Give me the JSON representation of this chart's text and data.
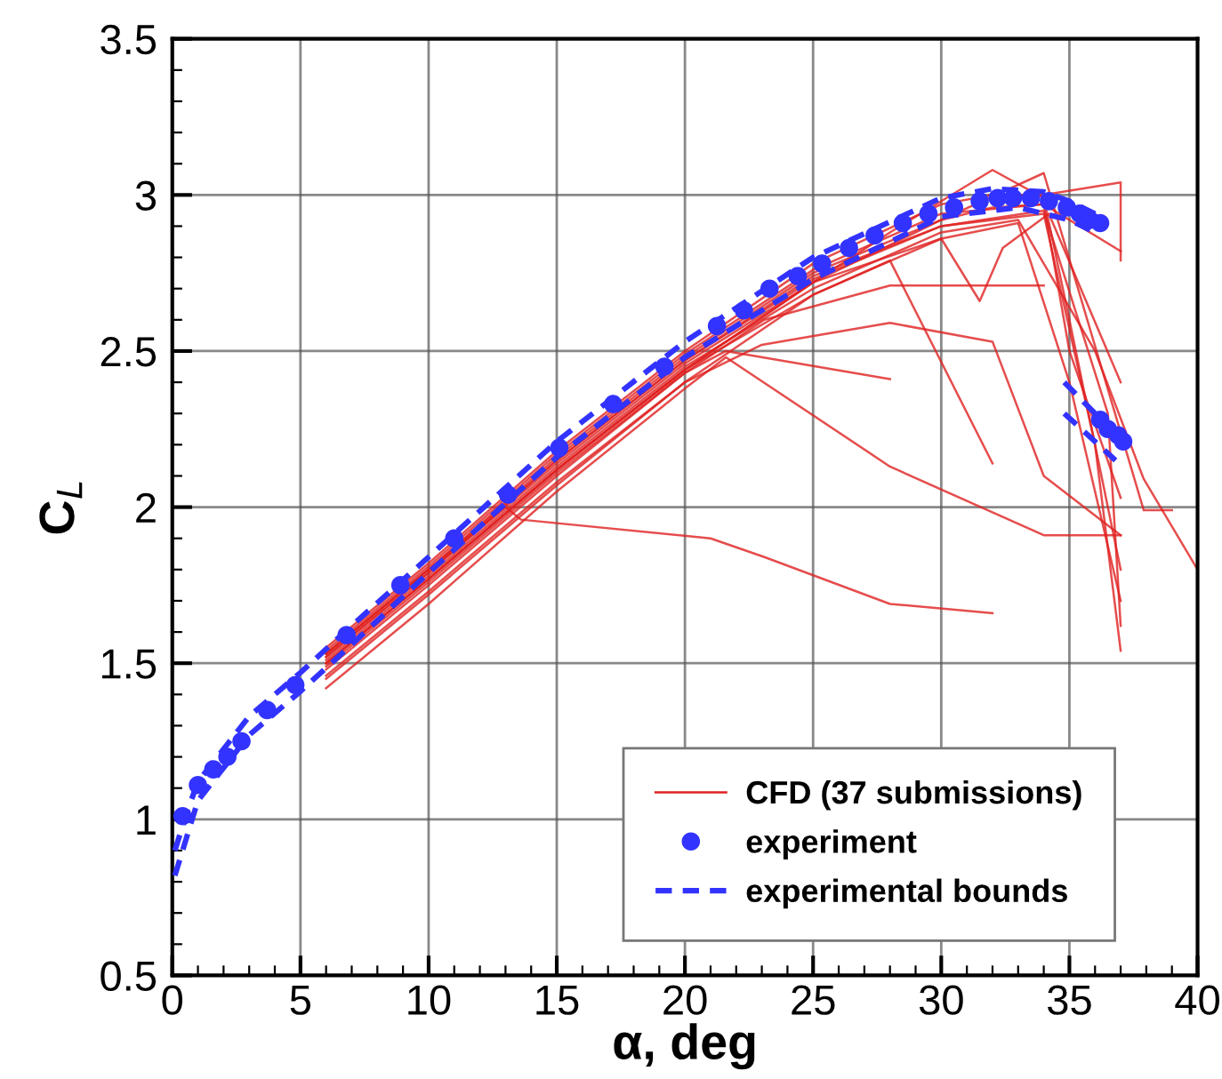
{
  "chart_data": {
    "type": "line",
    "xlabel": "α, deg",
    "ylabel": "C$_{L}$",
    "xlim": [
      0,
      40
    ],
    "ylim": [
      0.5,
      3.5
    ],
    "xticks": [
      0,
      {
        "value": 1,
        "label": null
      },
      {
        "value": 2,
        "label": null
      },
      {
        "value": 3,
        "label": null
      },
      {
        "value": 4,
        "label": null
      },
      5,
      {
        "value": 6,
        "label": null
      },
      {
        "value": 7,
        "label": null
      },
      {
        "value": 8,
        "label": null
      },
      {
        "value": 9,
        "label": null
      },
      10,
      {
        "value": 11,
        "label": null
      },
      {
        "value": 12,
        "label": null
      },
      {
        "value": 13,
        "label": null
      },
      {
        "value": 14,
        "label": null
      },
      15,
      {
        "value": 16,
        "label": null
      },
      {
        "value": 17,
        "label": null
      },
      {
        "value": 18,
        "label": null
      },
      {
        "value": 19,
        "label": null
      },
      20,
      {
        "value": 21,
        "label": null
      },
      {
        "value": 22,
        "label": null
      },
      {
        "value": 23,
        "label": null
      },
      {
        "value": 24,
        "label": null
      },
      25,
      {
        "value": 26,
        "label": null
      },
      {
        "value": 27,
        "label": null
      },
      {
        "value": 28,
        "label": null
      },
      {
        "value": 29,
        "label": null
      },
      30,
      {
        "value": 31,
        "label": null
      },
      {
        "value": 32,
        "label": null
      },
      {
        "value": 33,
        "label": null
      },
      {
        "value": 34,
        "label": null
      },
      35,
      {
        "value": 36,
        "label": null
      },
      {
        "value": 37,
        "label": null
      },
      {
        "value": 38,
        "label": null
      },
      {
        "value": 39,
        "label": null
      },
      40
    ],
    "yticks": [
      0.5,
      {
        "value": 0.6,
        "label": null
      },
      {
        "value": 0.7,
        "label": null
      },
      {
        "value": 0.8,
        "label": null
      },
      {
        "value": 0.9,
        "label": null
      },
      1,
      {
        "value": 1.1,
        "label": null
      },
      {
        "value": 1.2,
        "label": null
      },
      {
        "value": 1.3,
        "label": null
      },
      {
        "value": 1.4,
        "label": null
      },
      1.5,
      {
        "value": 1.6,
        "label": null
      },
      {
        "value": 1.7,
        "label": null
      },
      {
        "value": 1.8,
        "label": null
      },
      {
        "value": 1.9,
        "label": null
      },
      2,
      {
        "value": 2.1,
        "label": null
      },
      {
        "value": 2.2,
        "label": null
      },
      {
        "value": 2.3,
        "label": null
      },
      {
        "value": 2.4,
        "label": null
      },
      2.5,
      {
        "value": 2.6,
        "label": null
      },
      {
        "value": 2.7,
        "label": null
      },
      {
        "value": 2.8,
        "label": null
      },
      {
        "value": 2.9,
        "label": null
      },
      3,
      {
        "value": 3.1,
        "label": null
      },
      {
        "value": 3.2,
        "label": null
      },
      {
        "value": 3.3,
        "label": null
      },
      {
        "value": 3.4,
        "label": null
      },
      3.5
    ],
    "grid": true,
    "legend": "bottom right",
    "series": [
      {
        "name": "CFD (37 submissions)",
        "color": "#e02020",
        "line_style": "solid",
        "marker": "none",
        "x": [
          6,
          10,
          15,
          20,
          25,
          30,
          32,
          34,
          35,
          37
        ],
        "values": [
          1.53,
          1.8,
          2.16,
          2.48,
          2.75,
          2.92,
          2.96,
          2.97,
          2.5,
          2.03
        ]
      },
      {
        "type": "line",
        "color": "#e02020",
        "x": [
          6,
          10,
          15,
          20,
          25,
          30,
          32,
          34,
          37,
          37
        ],
        "values": [
          1.55,
          1.82,
          2.18,
          2.5,
          2.78,
          2.97,
          3.0,
          3.0,
          3.04,
          2.79
        ]
      },
      {
        "type": "line",
        "color": "#e02020",
        "x": [
          6,
          10,
          15,
          20,
          25,
          28,
          32,
          34,
          35,
          37
        ],
        "values": [
          1.52,
          1.79,
          2.14,
          2.46,
          2.72,
          2.88,
          3.08,
          2.99,
          2.6,
          1.8
        ]
      },
      {
        "type": "line",
        "color": "#e02020",
        "x": [
          6,
          10,
          15,
          20,
          25,
          30,
          34,
          37.9,
          39
        ],
        "values": [
          1.5,
          1.77,
          2.12,
          2.44,
          2.72,
          2.92,
          3.07,
          1.99,
          1.99
        ]
      },
      {
        "type": "line",
        "color": "#e02020",
        "x": [
          6,
          10,
          15,
          20,
          25,
          30,
          33,
          36,
          37.9,
          40
        ],
        "values": [
          1.51,
          1.78,
          2.13,
          2.45,
          2.7,
          2.88,
          2.92,
          2.5,
          2.09,
          1.8
        ]
      },
      {
        "type": "line",
        "color": "#e02020",
        "x": [
          6,
          10,
          15,
          20,
          25,
          30,
          34,
          36,
          37
        ],
        "values": [
          1.53,
          1.8,
          2.15,
          2.47,
          2.74,
          2.9,
          2.94,
          2.2,
          1.54
        ]
      },
      {
        "type": "line",
        "color": "#e02020",
        "x": [
          6,
          10,
          15,
          20,
          25,
          28,
          32
        ],
        "values": [
          1.5,
          1.77,
          2.12,
          2.44,
          2.68,
          2.79,
          2.14
        ]
      },
      {
        "type": "line",
        "color": "#e02020",
        "x": [
          6,
          10,
          15,
          20,
          23,
          28,
          32,
          34,
          37
        ],
        "values": [
          1.46,
          1.73,
          2.08,
          2.4,
          2.52,
          2.59,
          2.53,
          2.1,
          1.91
        ]
      },
      {
        "type": "line",
        "color": "#e02020",
        "x": [
          6,
          10,
          15,
          20,
          23.1,
          28,
          34
        ],
        "values": [
          1.49,
          1.76,
          2.11,
          2.43,
          2.6,
          2.71,
          2.71
        ]
      },
      {
        "type": "line",
        "color": "#e02020",
        "x": [
          6,
          10,
          15,
          20,
          21.6,
          28
        ],
        "values": [
          1.48,
          1.75,
          2.1,
          2.43,
          2.5,
          2.41
        ]
      },
      {
        "type": "line",
        "color": "#e02020",
        "x": [
          6,
          10,
          13,
          13.6,
          21,
          23.1,
          28,
          32
        ],
        "values": [
          1.53,
          1.8,
          2.0,
          1.96,
          1.9,
          1.84,
          1.69,
          1.66
        ]
      },
      {
        "type": "line",
        "color": "#e02020",
        "x": [
          6,
          10,
          15,
          20,
          21.6,
          28,
          34,
          37
        ],
        "values": [
          1.42,
          1.69,
          2.05,
          2.38,
          2.48,
          2.13,
          1.91,
          1.91
        ]
      },
      {
        "type": "line",
        "color": "#e02020",
        "x": [
          6,
          10,
          15,
          20,
          25,
          30,
          31.5,
          32.4,
          34.2,
          37
        ],
        "values": [
          1.5,
          1.77,
          2.12,
          2.44,
          2.72,
          2.86,
          2.66,
          2.83,
          2.94,
          2.4
        ]
      },
      {
        "type": "line",
        "color": "#e02020",
        "x": [
          6,
          10,
          15,
          20,
          25,
          30,
          34,
          37
        ],
        "values": [
          1.54,
          1.81,
          2.17,
          2.49,
          2.76,
          2.94,
          2.97,
          2.82
        ]
      },
      {
        "type": "line",
        "color": "#e02020",
        "x": [
          6,
          10,
          15,
          20,
          25,
          30,
          34,
          36.5,
          37
        ],
        "values": [
          1.52,
          1.79,
          2.15,
          2.47,
          2.73,
          2.9,
          2.95,
          2.3,
          1.62
        ]
      },
      {
        "type": "line",
        "color": "#e02020",
        "x": [
          6,
          10,
          15,
          20,
          25,
          30,
          33,
          35,
          37
        ],
        "values": [
          1.45,
          1.72,
          2.07,
          2.4,
          2.68,
          2.86,
          2.91,
          2.4,
          1.7
        ]
      },
      {
        "type": "scatter",
        "name": "experiment",
        "color": "#3333ff",
        "marker": "circle",
        "x": [
          0.4,
          1.0,
          1.6,
          2.15,
          2.7,
          3.7,
          4.8,
          6.8,
          8.9,
          11.0,
          13.1,
          15.1,
          17.2,
          19.2,
          21.25,
          22.3,
          23.3,
          24.4,
          25.35,
          26.4,
          27.4,
          28.5,
          29.5,
          30.5,
          31.5,
          32.2,
          32.8,
          33.5,
          34.2,
          34.9,
          35.4,
          35.8,
          36.2,
          36.2,
          36.5,
          36.9,
          37.1
        ],
        "values": [
          1.01,
          1.11,
          1.16,
          1.2,
          1.25,
          1.35,
          1.43,
          1.59,
          1.75,
          1.9,
          2.04,
          2.19,
          2.33,
          2.45,
          2.58,
          2.63,
          2.7,
          2.74,
          2.78,
          2.83,
          2.87,
          2.91,
          2.94,
          2.96,
          2.98,
          2.99,
          2.99,
          2.99,
          2.98,
          2.96,
          2.94,
          2.92,
          2.91,
          2.28,
          2.25,
          2.23,
          2.21
        ]
      },
      {
        "type": "line",
        "name": "experimental bounds",
        "color": "#3333ff",
        "line_style": "dashed",
        "marker": "none",
        "x": [
          0.1,
          0.6,
          1,
          3,
          5,
          7,
          10,
          15,
          20,
          25,
          30,
          32,
          34,
          35,
          36,
          null,
          34.8,
          36,
          37
        ],
        "values": [
          0.9,
          1.03,
          1.12,
          1.33,
          1.47,
          1.62,
          1.84,
          2.21,
          2.53,
          2.8,
          2.99,
          3.02,
          3.01,
          2.98,
          2.94,
          null,
          2.4,
          2.3,
          2.22
        ]
      },
      {
        "type": "line",
        "color": "#3333ff",
        "line_style": "dashed",
        "marker": "none",
        "x": [
          0.1,
          1,
          3,
          5,
          7,
          10,
          15,
          20,
          25,
          30,
          33,
          35,
          36,
          null,
          34.8,
          36,
          36.8
        ],
        "values": [
          0.82,
          1.06,
          1.27,
          1.41,
          1.56,
          1.79,
          2.16,
          2.48,
          2.73,
          2.93,
          2.96,
          2.92,
          2.88,
          null,
          2.3,
          2.21,
          2.15
        ]
      }
    ]
  }
}
